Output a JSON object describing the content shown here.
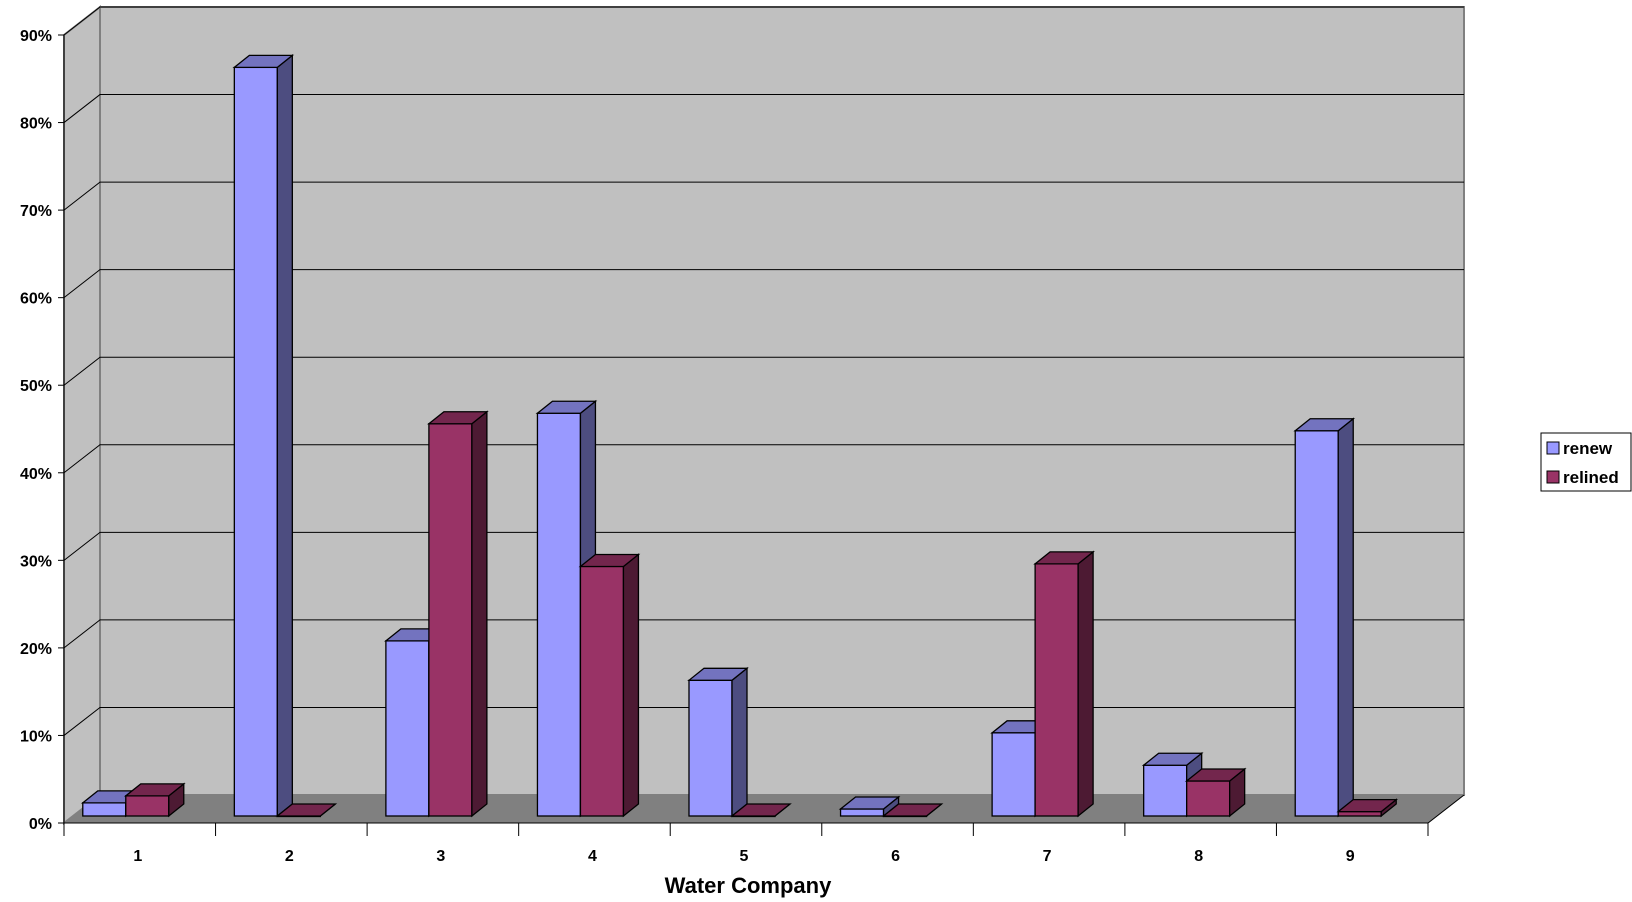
{
  "chart_data": {
    "type": "bar",
    "style": "3d-clustered-column",
    "title": "",
    "xlabel": "Water Company",
    "ylabel": "",
    "categories": [
      "1",
      "2",
      "3",
      "4",
      "5",
      "6",
      "7",
      "8",
      "9"
    ],
    "yticks": [
      "0%",
      "10%",
      "20%",
      "30%",
      "40%",
      "50%",
      "60%",
      "70%",
      "80%",
      "90%"
    ],
    "ylim": [
      0,
      90
    ],
    "grid": true,
    "legend_position": "right",
    "series": [
      {
        "name": "renew",
        "color": "#9999ff",
        "values": [
          1.5,
          85.5,
          20,
          46,
          15.5,
          0.8,
          9.5,
          5.8,
          44
        ]
      },
      {
        "name": "relined",
        "color": "#993366",
        "values": [
          2.3,
          0,
          44.8,
          28.5,
          0,
          0,
          28.8,
          4,
          0.5
        ]
      }
    ],
    "colors": {
      "wall": "#c0c0c0",
      "floor": "#808080",
      "gridline": "#000000"
    }
  }
}
